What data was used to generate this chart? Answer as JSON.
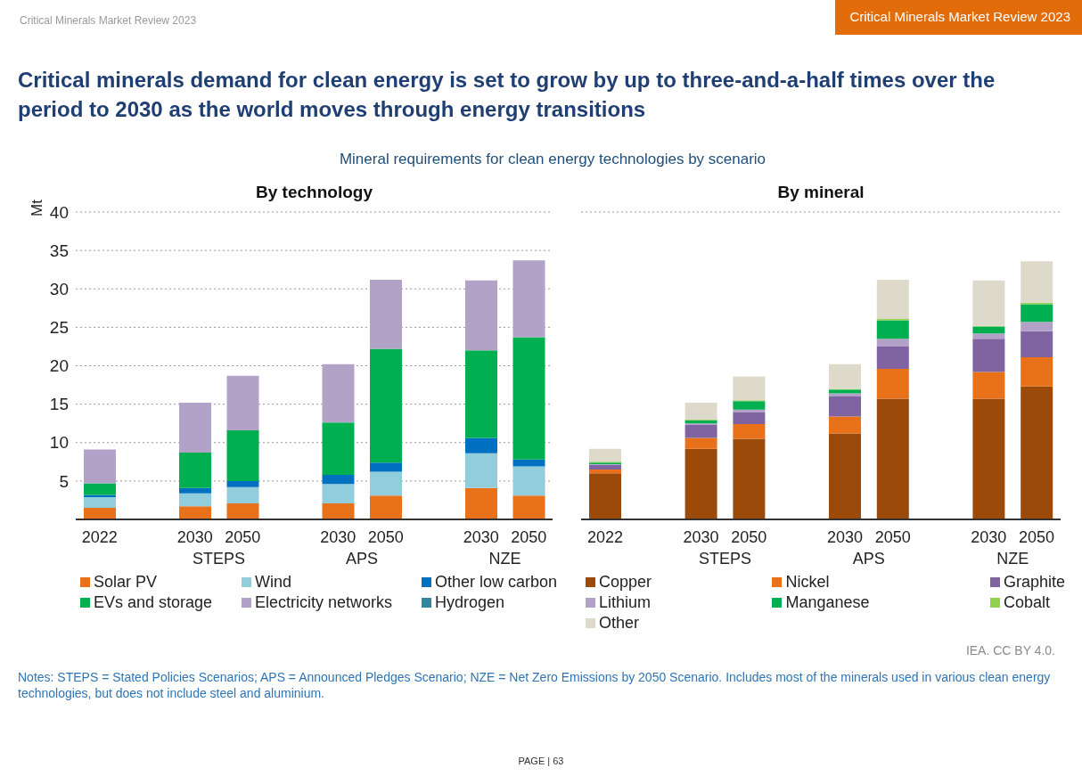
{
  "chart_data": [
    {
      "type": "bar",
      "stacked": true,
      "title": "By technology",
      "ylabel": "Mt",
      "categories": [
        "2022",
        null,
        "2030",
        "2050",
        null,
        "2030",
        "2050",
        null,
        "2030",
        "2050"
      ],
      "series": [
        {
          "name": "Solar PV",
          "color": "#e8711a",
          "values": [
            1.5,
            null,
            1.7,
            2.1,
            null,
            2.1,
            3.1,
            null,
            4.1,
            3.1
          ]
        },
        {
          "name": "Wind",
          "color": "#92cddc",
          "values": [
            1.4,
            null,
            1.7,
            2.1,
            null,
            2.5,
            3.1,
            null,
            4.5,
            3.8
          ]
        },
        {
          "name": "Other low carbon",
          "color": "#0070c0",
          "values": [
            0.3,
            null,
            0.7,
            0.8,
            null,
            1.2,
            1.2,
            null,
            2.0,
            0.9
          ]
        },
        {
          "name": "EVs and storage",
          "color": "#00b050",
          "values": [
            1.5,
            null,
            4.6,
            6.6,
            null,
            6.8,
            14.8,
            null,
            11.4,
            15.9
          ]
        },
        {
          "name": "Electricity networks",
          "color": "#b3a2c7",
          "values": [
            4.4,
            null,
            6.5,
            7.1,
            null,
            7.6,
            9.0,
            null,
            9.1,
            10.0
          ]
        },
        {
          "name": "Hydrogen",
          "color": "#31859c",
          "values": [
            null,
            null,
            null,
            null,
            null,
            null,
            null,
            null,
            null,
            null
          ]
        }
      ],
      "ylim": [
        0,
        40
      ],
      "yticks": [
        5,
        10,
        15,
        20,
        25,
        30,
        35,
        40
      ],
      "grid": "y",
      "legend": "bottom",
      "annotations": [
        "STEPS",
        "APS",
        "NZE",
        "Critical Minerals Market Review 2023",
        "Critical Minerals Market Review 2023",
        "Critical minerals demand for clean energy is set to grow by up to three-and-a-half times over the period to 2030 as the world moves through energy transitions",
        "Mineral requirements for clean energy technologies by scenario",
        "IEA. CC BY 4.0.",
        "Notes: STEPS = Stated Policies Scenarios; APS = Announced Pledges Scenario; NZE = Net Zero Emissions by 2050 Scenario. Includes most of the minerals used in various clean energy technologies, but does not include steel and aluminium.",
        "PAGE | 63"
      ]
    },
    {
      "type": "bar",
      "stacked": true,
      "title": "By mineral",
      "categories": [
        "2022",
        null,
        "2030",
        "2050",
        null,
        "2030",
        "2050",
        null,
        "2030",
        "2050"
      ],
      "series": [
        {
          "name": "Copper",
          "color": "#9c4a09",
          "values": [
            6.0,
            null,
            9.2,
            10.5,
            null,
            11.2,
            15.7,
            null,
            15.7,
            17.3
          ]
        },
        {
          "name": "Nickel",
          "color": "#e8711a",
          "values": [
            0.5,
            null,
            1.4,
            1.9,
            null,
            2.2,
            3.9,
            null,
            3.5,
            3.8
          ]
        },
        {
          "name": "Graphite",
          "color": "#8064a2",
          "values": [
            0.6,
            null,
            1.7,
            1.5,
            null,
            2.6,
            2.9,
            null,
            4.3,
            3.4
          ]
        },
        {
          "name": "Lithium",
          "color": "#b3a2c7",
          "values": [
            0.1,
            null,
            0.2,
            0.4,
            null,
            0.4,
            1.0,
            null,
            0.7,
            1.2
          ]
        },
        {
          "name": "Manganese",
          "color": "#00b050",
          "values": [
            0.2,
            null,
            0.4,
            1.1,
            null,
            0.5,
            2.4,
            null,
            0.9,
            2.3
          ]
        },
        {
          "name": "Cobalt",
          "color": "#92d050",
          "values": [
            0.1,
            null,
            0.1,
            0.1,
            null,
            0.1,
            0.2,
            null,
            0.1,
            0.2
          ]
        },
        {
          "name": "Other",
          "color": "#dddacb",
          "values": [
            1.7,
            null,
            2.2,
            3.1,
            null,
            3.2,
            5.1,
            null,
            5.9,
            5.4
          ]
        }
      ],
      "ylim": [
        0,
        40
      ],
      "yticks": [
        5,
        10,
        15,
        20,
        25,
        30,
        35,
        40
      ],
      "tick_labels": "x",
      "grid": "y",
      "legend": "bottom",
      "annotations": [
        "STEPS",
        "APS",
        "NZE"
      ]
    }
  ]
}
